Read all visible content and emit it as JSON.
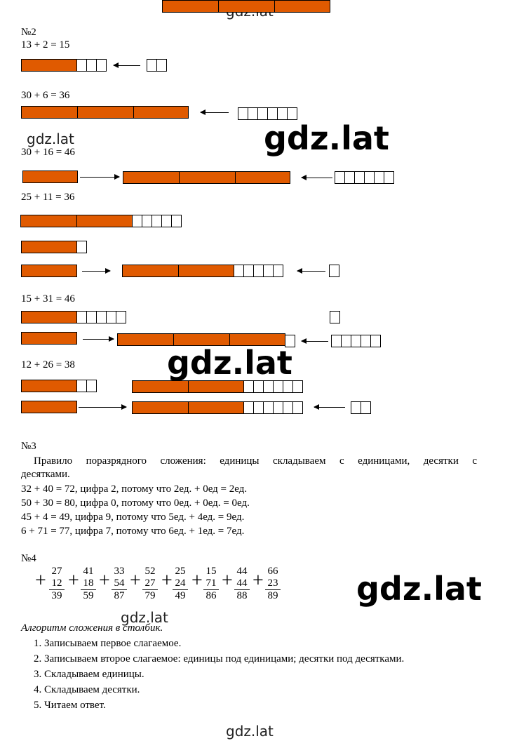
{
  "watermarks": [
    "gdz.lat",
    "gdz.lat",
    "gdz.lat",
    "gdz.lat",
    "gdz.lat",
    "gdz.lat",
    "gdz.lat"
  ],
  "task2": {
    "heading": "№2",
    "equations": [
      "13 + 2 = 15",
      "30 + 6 = 36",
      "30 + 16 = 46",
      "25 + 11 = 36",
      "15 + 31 = 46",
      "12 + 26 = 38"
    ]
  },
  "task3": {
    "heading": "№3",
    "rule_line1": "Правило поразрядного сложения: единицы складываем с единицами, десятки с",
    "rule_line2": "десятками.",
    "examples": [
      "32 + 40 = 72, цифра 2, потому что 2ед. + 0ед = 2ед.",
      "50 + 30 = 80, цифра 0, потому что 0ед. + 0ед. = 0ед.",
      "45 + 4 = 49, цифра 9, потому что 5ед. + 4ед. = 9ед.",
      "6 + 71 = 77, цифра 7, потому что 6ед. + 1ед. = 7ед."
    ]
  },
  "task4": {
    "heading": "№4",
    "columns": [
      {
        "a": "27",
        "b": "12",
        "sum": "39"
      },
      {
        "a": "41",
        "b": "18",
        "sum": "59"
      },
      {
        "a": "33",
        "b": "54",
        "sum": "87"
      },
      {
        "a": "52",
        "b": "27",
        "sum": "79"
      },
      {
        "a": "25",
        "b": "24",
        "sum": "49"
      },
      {
        "a": "15",
        "b": "71",
        "sum": "86"
      },
      {
        "a": "44",
        "b": "44",
        "sum": "88"
      },
      {
        "a": "66",
        "b": "23",
        "sum": "89"
      }
    ],
    "plus_sign": "+",
    "algorithm_title": "Алгоритм сложения в столбик.",
    "steps": [
      "1. Записываем первое слагаемое.",
      "2. Записываем второе слагаемое: единицы под единицами; десятки под десятками.",
      "3. Складываем единицы.",
      "4. Складываем десятки.",
      "5. Читаем ответ."
    ]
  },
  "colors": {
    "bar": "#e05a00",
    "line": "#000000",
    "background": "#ffffff"
  }
}
